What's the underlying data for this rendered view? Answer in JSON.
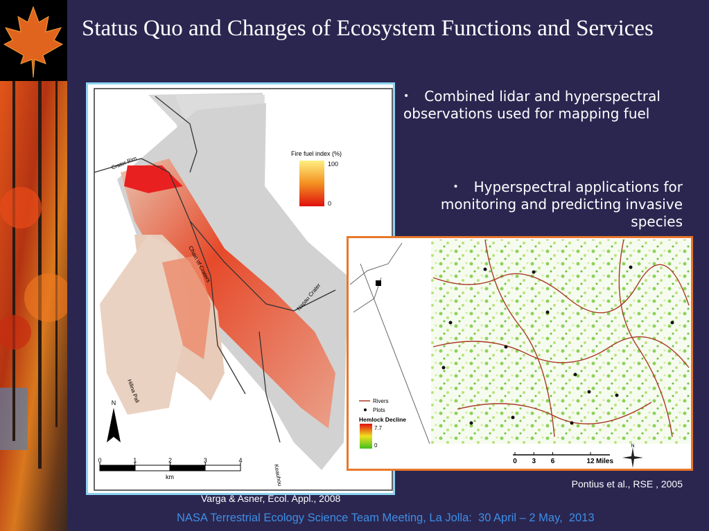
{
  "title": "Status Quo and Changes of Ecosystem Functions and Services",
  "bullets": [
    "Combined lidar and hyperspectral observations used for mapping fuel",
    "Hyperspectral applications for monitoring and predicting invasive species"
  ],
  "figure_1": {
    "legend_title": "Fire fuel index (%)",
    "legend_max": 100,
    "legend_min": 0,
    "place_labels": [
      "Crater Rim",
      "Chain of Craters",
      "Napau Crater",
      "Hilina Pali",
      "Keauhou"
    ],
    "north": "N",
    "scale_ticks": [
      0,
      1,
      2,
      3,
      4
    ],
    "scale_unit": "km",
    "citation": "Varga & Asner, Ecol. Appl., 2008"
  },
  "figure_2": {
    "legend_items": [
      "Rivers",
      "Plots"
    ],
    "legend_title": "Hemlock Decline",
    "legend_max": 7.7,
    "legend_min": 0,
    "scale_ticks": [
      0,
      3,
      6,
      12
    ],
    "scale_unit": "Miles",
    "north": "N",
    "citation": "Pontius et al., RSE , 2005"
  },
  "footer": "NASA Terrestrial Ecology Science Team Meeting, La Jolla:  30 April – 2 May,  2013"
}
